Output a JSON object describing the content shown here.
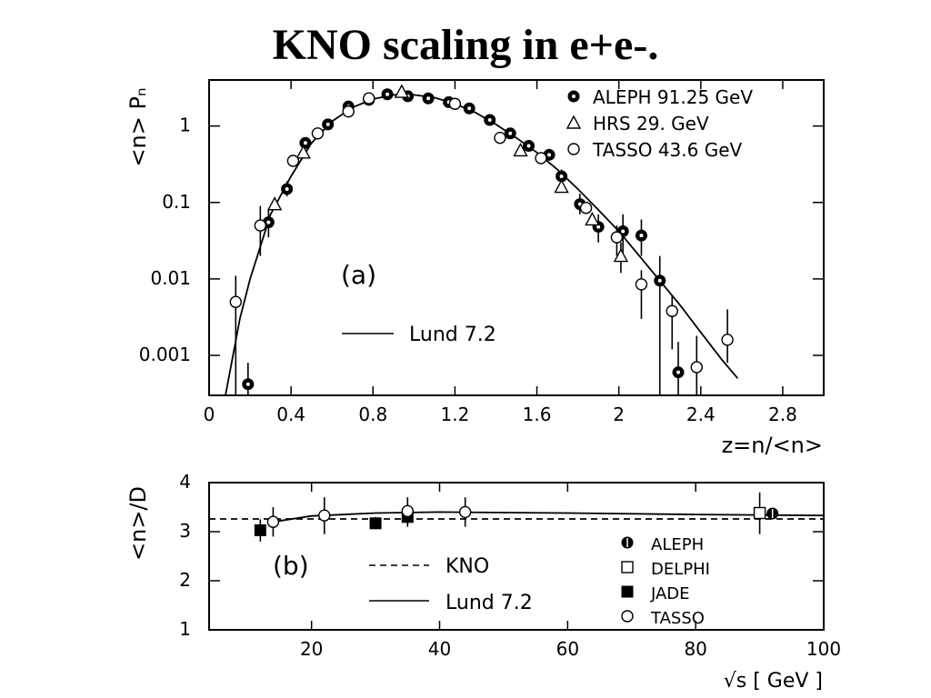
{
  "slide": {
    "title": "KNO scaling in e+e-."
  },
  "chart_data": [
    {
      "id": "a",
      "type": "scatter",
      "panel_label": "(a)",
      "title": "",
      "xlabel": "z=n/<n>",
      "ylabel": "<n> Pₙ",
      "xscale": "linear",
      "yscale": "log",
      "xlim": [
        0,
        3.0
      ],
      "ylim": [
        0.0003,
        4
      ],
      "xticks": [
        0,
        0.4,
        0.8,
        1.2,
        1.6,
        2,
        2.4,
        2.8
      ],
      "xtick_labels": [
        "0",
        "0.4",
        "0.8",
        "1.2",
        "1.6",
        "2",
        "2.4",
        "2.8"
      ],
      "yticks": [
        0.001,
        0.01,
        0.1,
        1
      ],
      "ytick_labels": [
        "0.001",
        "0.01",
        "0.1",
        "1"
      ],
      "grid": false,
      "legend": "top-right",
      "series": [
        {
          "name": "ALEPH 91.25 GeV",
          "marker": "filled-circle",
          "points": [
            {
              "x": 0.19,
              "y": 0.00042,
              "lo": 0.0003,
              "hi": 0.0008
            },
            {
              "x": 0.29,
              "y": 0.055,
              "lo": 0.035,
              "hi": 0.08
            },
            {
              "x": 0.38,
              "y": 0.15,
              "lo": 0.12,
              "hi": 0.19
            },
            {
              "x": 0.47,
              "y": 0.6
            },
            {
              "x": 0.58,
              "y": 1.05
            },
            {
              "x": 0.68,
              "y": 1.8
            },
            {
              "x": 0.78,
              "y": 2.2
            },
            {
              "x": 0.87,
              "y": 2.6
            },
            {
              "x": 0.97,
              "y": 2.45
            },
            {
              "x": 1.07,
              "y": 2.3
            },
            {
              "x": 1.17,
              "y": 2.05
            },
            {
              "x": 1.27,
              "y": 1.7
            },
            {
              "x": 1.37,
              "y": 1.2
            },
            {
              "x": 1.47,
              "y": 0.8
            },
            {
              "x": 1.56,
              "y": 0.55
            },
            {
              "x": 1.66,
              "y": 0.42
            },
            {
              "x": 1.72,
              "y": 0.22,
              "lo": 0.18,
              "hi": 0.27
            },
            {
              "x": 1.81,
              "y": 0.095,
              "lo": 0.07,
              "hi": 0.13
            },
            {
              "x": 1.9,
              "y": 0.048,
              "lo": 0.03,
              "hi": 0.07
            },
            {
              "x": 2.02,
              "y": 0.042,
              "lo": 0.02,
              "hi": 0.07
            },
            {
              "x": 2.11,
              "y": 0.037,
              "lo": 0.02,
              "hi": 0.06
            },
            {
              "x": 2.2,
              "y": 0.0095,
              "lo": 0.0003,
              "hi": 0.02
            },
            {
              "x": 2.29,
              "y": 0.0006,
              "lo": 0.0003,
              "hi": 0.0015
            }
          ]
        },
        {
          "name": "HRS 29. GeV",
          "marker": "open-triangle",
          "points": [
            {
              "x": 0.32,
              "y": 0.095
            },
            {
              "x": 0.46,
              "y": 0.45
            },
            {
              "x": 0.94,
              "y": 2.8
            },
            {
              "x": 1.52,
              "y": 0.48
            },
            {
              "x": 1.72,
              "y": 0.16
            },
            {
              "x": 1.87,
              "y": 0.06
            },
            {
              "x": 2.01,
              "y": 0.02,
              "lo": 0.012,
              "hi": 0.03
            }
          ]
        },
        {
          "name": "TASSO 43.6 GeV",
          "marker": "open-circle",
          "points": [
            {
              "x": 0.13,
              "y": 0.005,
              "lo": 0.0003,
              "hi": 0.011
            },
            {
              "x": 0.25,
              "y": 0.05,
              "lo": 0.02,
              "hi": 0.09
            },
            {
              "x": 0.41,
              "y": 0.35
            },
            {
              "x": 0.53,
              "y": 0.8
            },
            {
              "x": 0.68,
              "y": 1.55
            },
            {
              "x": 0.78,
              "y": 2.3
            },
            {
              "x": 1.2,
              "y": 1.95
            },
            {
              "x": 1.42,
              "y": 0.7
            },
            {
              "x": 1.62,
              "y": 0.38
            },
            {
              "x": 1.84,
              "y": 0.085
            },
            {
              "x": 1.99,
              "y": 0.035,
              "lo": 0.02,
              "hi": 0.05
            },
            {
              "x": 2.11,
              "y": 0.0085,
              "lo": 0.003,
              "hi": 0.013
            },
            {
              "x": 2.26,
              "y": 0.0038,
              "lo": 0.0012,
              "hi": 0.006
            },
            {
              "x": 2.38,
              "y": 0.0007,
              "lo": 0.0003,
              "hi": 0.0018
            },
            {
              "x": 2.53,
              "y": 0.0016,
              "lo": 0.0008,
              "hi": 0.004
            }
          ]
        }
      ],
      "curves": [
        {
          "name": "Lund 7.2",
          "style": "solid",
          "points": [
            [
              0.08,
              0.0003
            ],
            [
              0.15,
              0.003
            ],
            [
              0.2,
              0.01
            ],
            [
              0.3,
              0.07
            ],
            [
              0.4,
              0.22
            ],
            [
              0.5,
              0.6
            ],
            [
              0.6,
              1.15
            ],
            [
              0.7,
              1.75
            ],
            [
              0.8,
              2.25
            ],
            [
              0.9,
              2.55
            ],
            [
              1.0,
              2.55
            ],
            [
              1.1,
              2.35
            ],
            [
              1.2,
              1.95
            ],
            [
              1.3,
              1.5
            ],
            [
              1.4,
              1.05
            ],
            [
              1.5,
              0.7
            ],
            [
              1.6,
              0.45
            ],
            [
              1.7,
              0.27
            ],
            [
              1.8,
              0.15
            ],
            [
              1.9,
              0.08
            ],
            [
              2.0,
              0.042
            ],
            [
              2.1,
              0.02
            ],
            [
              2.2,
              0.0095
            ],
            [
              2.3,
              0.0045
            ],
            [
              2.4,
              0.002
            ],
            [
              2.5,
              0.0009
            ],
            [
              2.58,
              0.0005
            ]
          ]
        }
      ],
      "annotations": [
        {
          "text": "Lund 7.2",
          "kind": "line-key"
        }
      ]
    },
    {
      "id": "b",
      "type": "scatter",
      "panel_label": "(b)",
      "title": "",
      "xlabel": "√s [ GeV ]",
      "ylabel": "<n>/D",
      "xlim": [
        4,
        100
      ],
      "ylim": [
        1,
        4
      ],
      "xticks": [
        20,
        40,
        60,
        80,
        100
      ],
      "xtick_labels": [
        "20",
        "40",
        "60",
        "80",
        "100"
      ],
      "yticks": [
        1,
        2,
        3,
        4
      ],
      "ytick_labels": [
        "1",
        "2",
        "3",
        "4"
      ],
      "grid": false,
      "legend": "bottom-right",
      "series": [
        {
          "name": "ALEPH",
          "marker": "half-filled-circle",
          "points": [
            {
              "x": 92,
              "y": 3.37
            }
          ]
        },
        {
          "name": "DELPHI",
          "marker": "open-square",
          "points": [
            {
              "x": 90,
              "y": 3.38,
              "lo": 2.95,
              "hi": 3.8
            }
          ]
        },
        {
          "name": "JADE",
          "marker": "filled-square",
          "points": [
            {
              "x": 12,
              "y": 3.03,
              "lo": 2.8,
              "hi": 3.25
            },
            {
              "x": 30,
              "y": 3.17,
              "lo": 3.05,
              "hi": 3.3
            },
            {
              "x": 35,
              "y": 3.3,
              "lo": 3.2,
              "hi": 3.4
            }
          ]
        },
        {
          "name": "TASSO",
          "marker": "open-circle",
          "points": [
            {
              "x": 14,
              "y": 3.2,
              "lo": 2.9,
              "hi": 3.5
            },
            {
              "x": 22,
              "y": 3.33,
              "lo": 2.95,
              "hi": 3.7
            },
            {
              "x": 35,
              "y": 3.42,
              "lo": 3.1,
              "hi": 3.7
            },
            {
              "x": 44,
              "y": 3.4,
              "lo": 3.1,
              "hi": 3.7
            }
          ]
        }
      ],
      "curves": [
        {
          "name": "KNO",
          "style": "dashed",
          "points": [
            [
              4,
              3.26
            ],
            [
              100,
              3.26
            ]
          ]
        },
        {
          "name": "Lund 7.2",
          "style": "solid",
          "points": [
            [
              14,
              3.2
            ],
            [
              20,
              3.32
            ],
            [
              30,
              3.38
            ],
            [
              40,
              3.4
            ],
            [
              60,
              3.38
            ],
            [
              80,
              3.35
            ],
            [
              100,
              3.33
            ]
          ]
        }
      ]
    }
  ]
}
